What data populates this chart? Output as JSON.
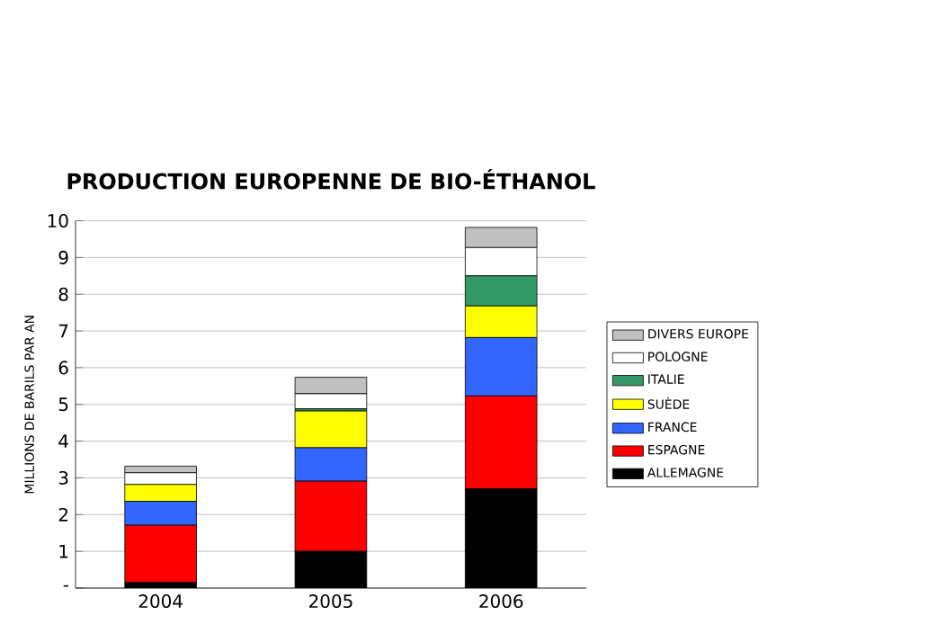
{
  "chart_data": {
    "type": "bar",
    "stacked": true,
    "title": "PRODUCTION EUROPENNE DE BIO-ÉTHANOL",
    "ylabel": "MILLIONS DE BARILS PAR AN",
    "categories": [
      "2004",
      "2005",
      "2006"
    ],
    "series": [
      {
        "name": "ALLEMAGNE",
        "color": "#000000",
        "values": [
          0.15,
          1.0,
          2.7
        ]
      },
      {
        "name": "ESPAGNE",
        "color": "#ff0000",
        "values": [
          1.56,
          1.91,
          2.53
        ]
      },
      {
        "name": "FRANCE",
        "color": "#3366ff",
        "values": [
          0.65,
          0.91,
          1.59
        ]
      },
      {
        "name": "SUÈDE",
        "color": "#ffff00",
        "values": [
          0.46,
          1.0,
          0.86
        ]
      },
      {
        "name": "ITALIE",
        "color": "#339966",
        "values": [
          0,
          0.06,
          0.82
        ]
      },
      {
        "name": "POLOGNE",
        "color": "#ffffff",
        "values": [
          0.32,
          0.41,
          0.77
        ]
      },
      {
        "name": "DIVERS EUROPE",
        "color": "#c0c0c0",
        "values": [
          0.18,
          0.45,
          0.55
        ]
      }
    ],
    "ylim": [
      0,
      10
    ],
    "yticks": [
      {
        "value": 0,
        "label": "-"
      },
      1,
      2,
      3,
      4,
      5,
      6,
      7,
      8,
      9,
      10
    ],
    "grid": "y",
    "legend": "right"
  }
}
